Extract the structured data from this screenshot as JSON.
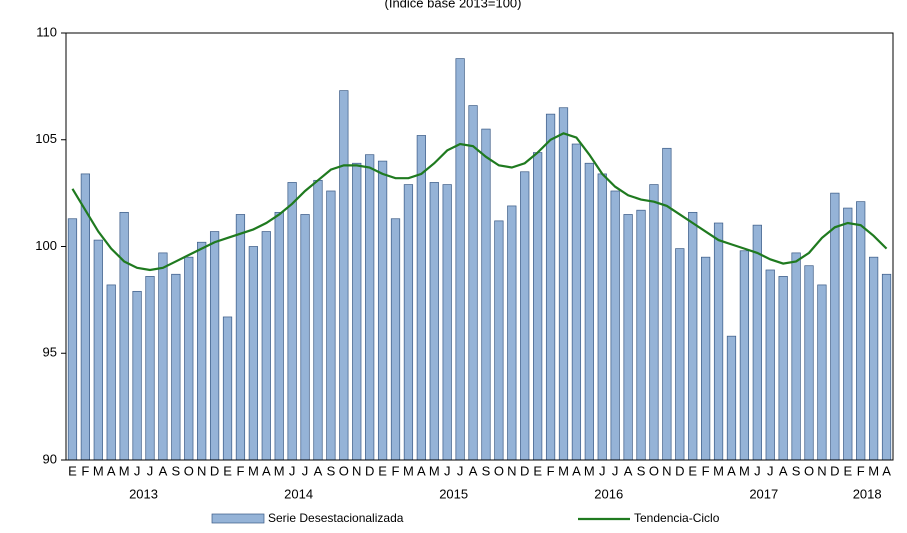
{
  "chart_data": {
    "type": "combo",
    "subtitle": "(Índice base 2013=100)",
    "categories": [
      "E",
      "F",
      "M",
      "A",
      "M",
      "J",
      "J",
      "A",
      "S",
      "O",
      "N",
      "D",
      "E",
      "F",
      "M",
      "A",
      "M",
      "J",
      "J",
      "A",
      "S",
      "O",
      "N",
      "D",
      "E",
      "F",
      "M",
      "A",
      "M",
      "J",
      "J",
      "A",
      "S",
      "O",
      "N",
      "D",
      "E",
      "F",
      "M",
      "A",
      "M",
      "J",
      "J",
      "A",
      "S",
      "O",
      "N",
      "D",
      "E",
      "F",
      "M",
      "A",
      "M",
      "J",
      "J",
      "A",
      "S",
      "O",
      "N",
      "D",
      "E",
      "F",
      "M",
      "A"
    ],
    "years": [
      "2013",
      "2014",
      "2015",
      "2016",
      "2017",
      "2018"
    ],
    "ylim": [
      90,
      110
    ],
    "yticks": [
      90,
      95,
      100,
      105,
      110
    ],
    "legend": "bottom",
    "series": [
      {
        "name": "Serie Desestacionalizada",
        "type": "bar",
        "color": "#95b3d7",
        "values": [
          101.3,
          103.4,
          100.3,
          98.2,
          101.6,
          97.9,
          98.6,
          99.7,
          98.7,
          99.5,
          100.2,
          100.7,
          96.7,
          101.5,
          100.0,
          100.7,
          101.6,
          103.0,
          101.5,
          103.1,
          102.6,
          107.3,
          103.9,
          104.3,
          104.0,
          101.3,
          102.9,
          105.2,
          103.0,
          102.9,
          108.8,
          106.6,
          105.5,
          101.2,
          101.9,
          103.5,
          104.4,
          106.2,
          106.5,
          104.8,
          103.9,
          103.4,
          102.6,
          101.5,
          101.7,
          102.9,
          104.6,
          99.9,
          101.6,
          99.5,
          101.1,
          95.8,
          99.8,
          101.0,
          98.9,
          98.6,
          99.7,
          99.1,
          98.2,
          102.5,
          101.8,
          102.1,
          99.5,
          98.7
        ]
      },
      {
        "name": "Tendencia-Ciclo",
        "type": "line",
        "color": "#1f7a1f",
        "values": [
          102.7,
          101.7,
          100.7,
          99.9,
          99.3,
          99.0,
          98.9,
          99.0,
          99.3,
          99.6,
          99.9,
          100.2,
          100.4,
          100.6,
          100.8,
          101.1,
          101.5,
          102.0,
          102.6,
          103.1,
          103.6,
          103.8,
          103.8,
          103.7,
          103.4,
          103.2,
          103.2,
          103.4,
          103.9,
          104.5,
          104.8,
          104.7,
          104.2,
          103.8,
          103.7,
          103.9,
          104.4,
          105.0,
          105.3,
          105.1,
          104.3,
          103.4,
          102.8,
          102.4,
          102.2,
          102.1,
          101.9,
          101.5,
          101.1,
          100.7,
          100.3,
          100.1,
          99.9,
          99.7,
          99.4,
          99.2,
          99.3,
          99.7,
          100.4,
          100.9,
          101.1,
          101.0,
          100.5,
          99.9
        ]
      }
    ]
  }
}
